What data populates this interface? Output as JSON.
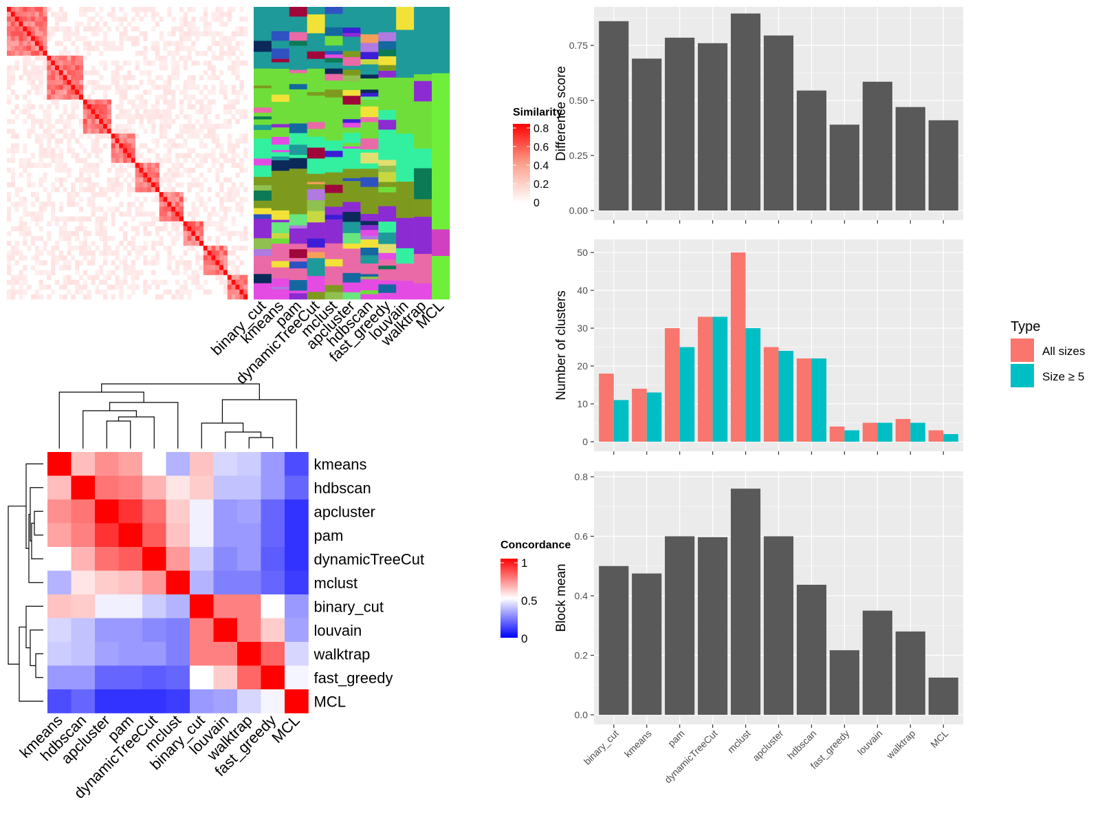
{
  "colors": {
    "panel_bg": "#EBEBEB",
    "grid": "#FFFFFF",
    "bar_dark": "#595959",
    "all_sizes": "#F8766D",
    "size_ge5": "#00BFC4",
    "sim_high": "#FF0000",
    "sim_low": "#FFFFFF",
    "conc_high": "#FF0000",
    "conc_mid": "#FFFFFF",
    "conc_low": "#0000FF"
  },
  "methods": [
    "binary_cut",
    "kmeans",
    "pam",
    "dynamicTreeCut",
    "mclust",
    "apcluster",
    "hdbscan",
    "fast_greedy",
    "louvain",
    "walktrap",
    "MCL"
  ],
  "similarity_legend": {
    "title": "Similarity",
    "ticks": [
      "0.8",
      "0.6",
      "0.4",
      "0.2",
      "0"
    ]
  },
  "concordance_legend": {
    "title": "Concordance",
    "ticks": [
      "1",
      "0.5",
      "0"
    ]
  },
  "concordance_order": [
    "kmeans",
    "hdbscan",
    "apcluster",
    "pam",
    "dynamicTreeCut",
    "mclust",
    "binary_cut",
    "louvain",
    "walktrap",
    "fast_greedy",
    "MCL"
  ],
  "concordance_matrix": [
    [
      1.0,
      0.63,
      0.72,
      0.68,
      0.5,
      0.35,
      0.62,
      0.42,
      0.4,
      0.3,
      0.15
    ],
    [
      0.63,
      1.0,
      0.77,
      0.75,
      0.65,
      0.55,
      0.6,
      0.38,
      0.38,
      0.3,
      0.2
    ],
    [
      0.72,
      0.77,
      1.0,
      0.9,
      0.78,
      0.6,
      0.47,
      0.3,
      0.32,
      0.2,
      0.1
    ],
    [
      0.68,
      0.75,
      0.9,
      1.0,
      0.82,
      0.62,
      0.47,
      0.3,
      0.3,
      0.2,
      0.1
    ],
    [
      0.5,
      0.65,
      0.78,
      0.82,
      1.0,
      0.7,
      0.4,
      0.27,
      0.3,
      0.18,
      0.1
    ],
    [
      0.35,
      0.55,
      0.6,
      0.62,
      0.7,
      1.0,
      0.35,
      0.25,
      0.25,
      0.2,
      0.12
    ],
    [
      0.62,
      0.6,
      0.47,
      0.47,
      0.4,
      0.35,
      1.0,
      0.75,
      0.75,
      0.5,
      0.3
    ],
    [
      0.42,
      0.38,
      0.3,
      0.3,
      0.27,
      0.25,
      0.75,
      1.0,
      0.75,
      0.6,
      0.32
    ],
    [
      0.4,
      0.38,
      0.32,
      0.3,
      0.3,
      0.25,
      0.75,
      0.75,
      1.0,
      0.8,
      0.42
    ],
    [
      0.3,
      0.3,
      0.2,
      0.2,
      0.18,
      0.2,
      0.5,
      0.6,
      0.8,
      1.0,
      0.48
    ],
    [
      0.15,
      0.2,
      0.1,
      0.1,
      0.1,
      0.12,
      0.3,
      0.32,
      0.42,
      0.48,
      1.0
    ]
  ],
  "chart_data": [
    {
      "type": "bar",
      "categories": [
        "binary_cut",
        "kmeans",
        "pam",
        "dynamicTreeCut",
        "mclust",
        "apcluster",
        "hdbscan",
        "fast_greedy",
        "louvain",
        "walktrap",
        "MCL"
      ],
      "values": [
        0.86,
        0.69,
        0.785,
        0.76,
        0.895,
        0.795,
        0.545,
        0.39,
        0.585,
        0.47,
        0.41
      ],
      "ylabel": "Difference score",
      "ylim": [
        0,
        0.9
      ],
      "yticks": [
        0,
        0.25,
        0.5,
        0.75
      ],
      "ytick_labels": [
        "0.00",
        "0.25",
        "0.50",
        "0.75"
      ],
      "grid": true
    },
    {
      "type": "bar",
      "categories": [
        "binary_cut",
        "kmeans",
        "pam",
        "dynamicTreeCut",
        "mclust",
        "apcluster",
        "hdbscan",
        "fast_greedy",
        "louvain",
        "walktrap",
        "MCL"
      ],
      "series": [
        {
          "name": "All sizes",
          "values": [
            18,
            14,
            30,
            33,
            50,
            25,
            22,
            4,
            5,
            6,
            3
          ]
        },
        {
          "name": "Size ≥ 5",
          "values": [
            11,
            13,
            25,
            33,
            30,
            24,
            22,
            3,
            5,
            5,
            2
          ]
        }
      ],
      "ylabel": "Number of clusters",
      "ylim": [
        0,
        52
      ],
      "yticks": [
        0,
        10,
        20,
        30,
        40,
        50
      ],
      "ytick_labels": [
        "0",
        "10",
        "20",
        "30",
        "40",
        "50"
      ],
      "legend": {
        "title": "Type",
        "position": "right"
      },
      "grid": true
    },
    {
      "type": "bar",
      "categories": [
        "binary_cut",
        "kmeans",
        "pam",
        "dynamicTreeCut",
        "mclust",
        "apcluster",
        "hdbscan",
        "fast_greedy",
        "louvain",
        "walktrap",
        "MCL"
      ],
      "values": [
        0.5,
        0.475,
        0.6,
        0.597,
        0.76,
        0.6,
        0.437,
        0.217,
        0.35,
        0.28,
        0.125
      ],
      "ylabel": "Block mean",
      "ylim": [
        0,
        0.8
      ],
      "yticks": [
        0,
        0.2,
        0.4,
        0.6,
        0.8
      ],
      "ytick_labels": [
        "0.0",
        "0.2",
        "0.4",
        "0.6",
        "0.8"
      ],
      "grid": true
    }
  ]
}
